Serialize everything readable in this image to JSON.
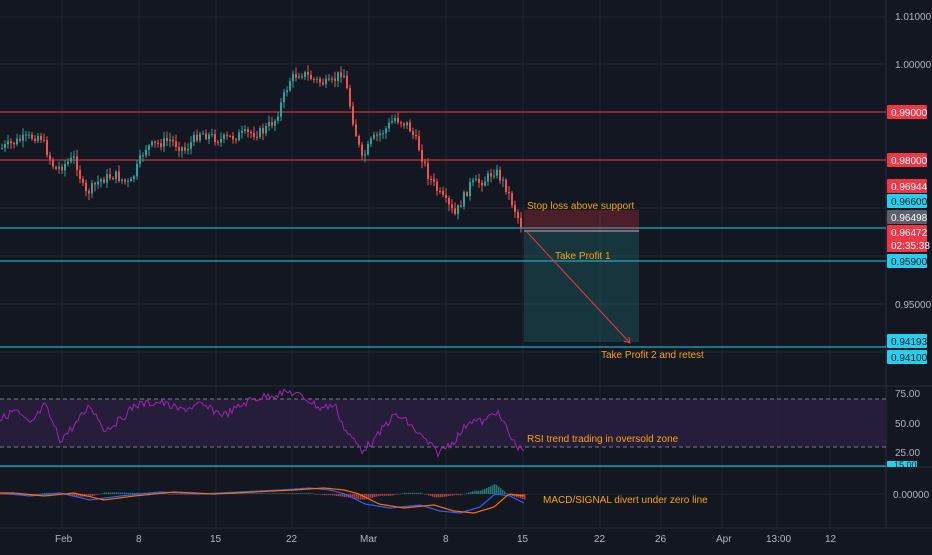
{
  "colors": {
    "background": "#131722",
    "grid": "#1f2430",
    "up_candle": "#26a69a",
    "down_candle": "#ef5350",
    "red_level": "#f23645",
    "cyan_level": "#22d1ee",
    "note_text": "#f7a600",
    "rsi_line": "#9c27b0",
    "rsi_band": "#2a1e3f",
    "macd_line": "#2962ff",
    "signal_line": "#ff6d00"
  },
  "price_axis": {
    "ticks": [
      "1.01000",
      "1.00000",
      "0.95000"
    ]
  },
  "price_badges": [
    {
      "text": "0.99000",
      "color": "#f23645"
    },
    {
      "text": "0.98000",
      "color": "#f23645"
    },
    {
      "text": "0.96944",
      "color": "#f23645"
    },
    {
      "text": "0.96600",
      "color": "#22d1ee"
    },
    {
      "text": "0.96498",
      "color": "#5d606b"
    },
    {
      "text": "0.96472",
      "color": "#f23645"
    },
    {
      "text": "02:35:38",
      "color": "#f23645"
    },
    {
      "text": "0.95900",
      "color": "#22d1ee"
    },
    {
      "text": "0.94193",
      "color": "#22d1ee"
    },
    {
      "text": "0.94100",
      "color": "#22d1ee"
    }
  ],
  "annotations": {
    "stop_loss": "Stop loss above support",
    "take_profit_1": "Take Profit 1",
    "take_profit_2": "Take Profit 2 and retest",
    "rsi_note": "RSI trend trading in oversold zone",
    "macd_note": "MACD/SIGNAL divert under zero line"
  },
  "rsi_axis": {
    "ticks": [
      "75.00",
      "50.00",
      "25.00",
      "15.00"
    ]
  },
  "macd_axis": {
    "ticks": [
      "0.00000"
    ]
  },
  "time_axis": {
    "labels": [
      "Feb",
      "8",
      "15",
      "22",
      "Mar",
      "8",
      "15",
      "22",
      "26",
      "Apr",
      "13:00",
      "12"
    ]
  }
}
